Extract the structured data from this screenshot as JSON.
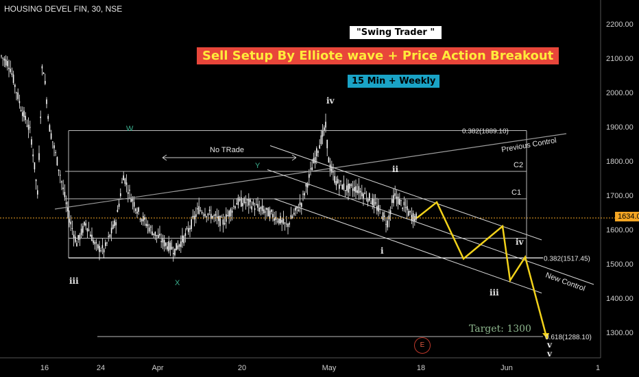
{
  "chart": {
    "symbol": "HOUSING DEVEL FIN, 30, NSE",
    "title_1": "\"Swing Trader \"",
    "title_2": "Sell Setup By Elliote wave + Price Action Breakout",
    "timeframe": "15 Min + Weekly",
    "last_price": "1634.00",
    "target_text": "Target: 1300",
    "event_marker": "E"
  },
  "colors": {
    "background": "#000000",
    "candles": "#ffffff",
    "price_line": "#f5a623",
    "projection": "#f2d21a",
    "setup_badge_bg": "#e8463a",
    "setup_badge_text": "#ffeb3b",
    "timeframe_badge_bg": "#1aa3c6"
  },
  "chart_data": {
    "type": "line",
    "y_axis": {
      "ticks": [
        "2200.00",
        "2100.00",
        "2000.00",
        "1900.00",
        "1800.00",
        "1700.00",
        "1600.00",
        "1500.00",
        "1400.00",
        "1300.00"
      ],
      "ylim": [
        1230,
        2250
      ]
    },
    "x_axis": {
      "ticks": [
        "16",
        "24",
        "Apr",
        "20",
        "May",
        "18",
        "Jun",
        "1"
      ]
    },
    "levels": [
      {
        "label": "0.382(1889.10)",
        "value": 1889.1
      },
      {
        "label": "C2",
        "value": 1770
      },
      {
        "label": "C1",
        "value": 1690
      },
      {
        "label": "0.382(1517.45)",
        "value": 1517.45
      },
      {
        "label": "0.618(1288.10)",
        "value": 1288.1
      }
    ],
    "trendlines": [
      {
        "label": "Previous Control"
      },
      {
        "label": "New Control"
      },
      {
        "label": "No TRade"
      }
    ],
    "wave_labels": [
      "iii",
      "W",
      "X",
      "Y",
      "iv",
      "ii",
      "i",
      "iv",
      "iii",
      "v",
      "v"
    ],
    "projection_path": {
      "name": "",
      "x": [
        "May 17",
        "May 21",
        "May 25",
        "May 31",
        "Jun 2",
        "Jun 4",
        "Jun 6"
      ],
      "values": [
        1634,
        1680,
        1515,
        1610,
        1452,
        1520,
        1280
      ]
    },
    "last_price": 1634.0
  }
}
